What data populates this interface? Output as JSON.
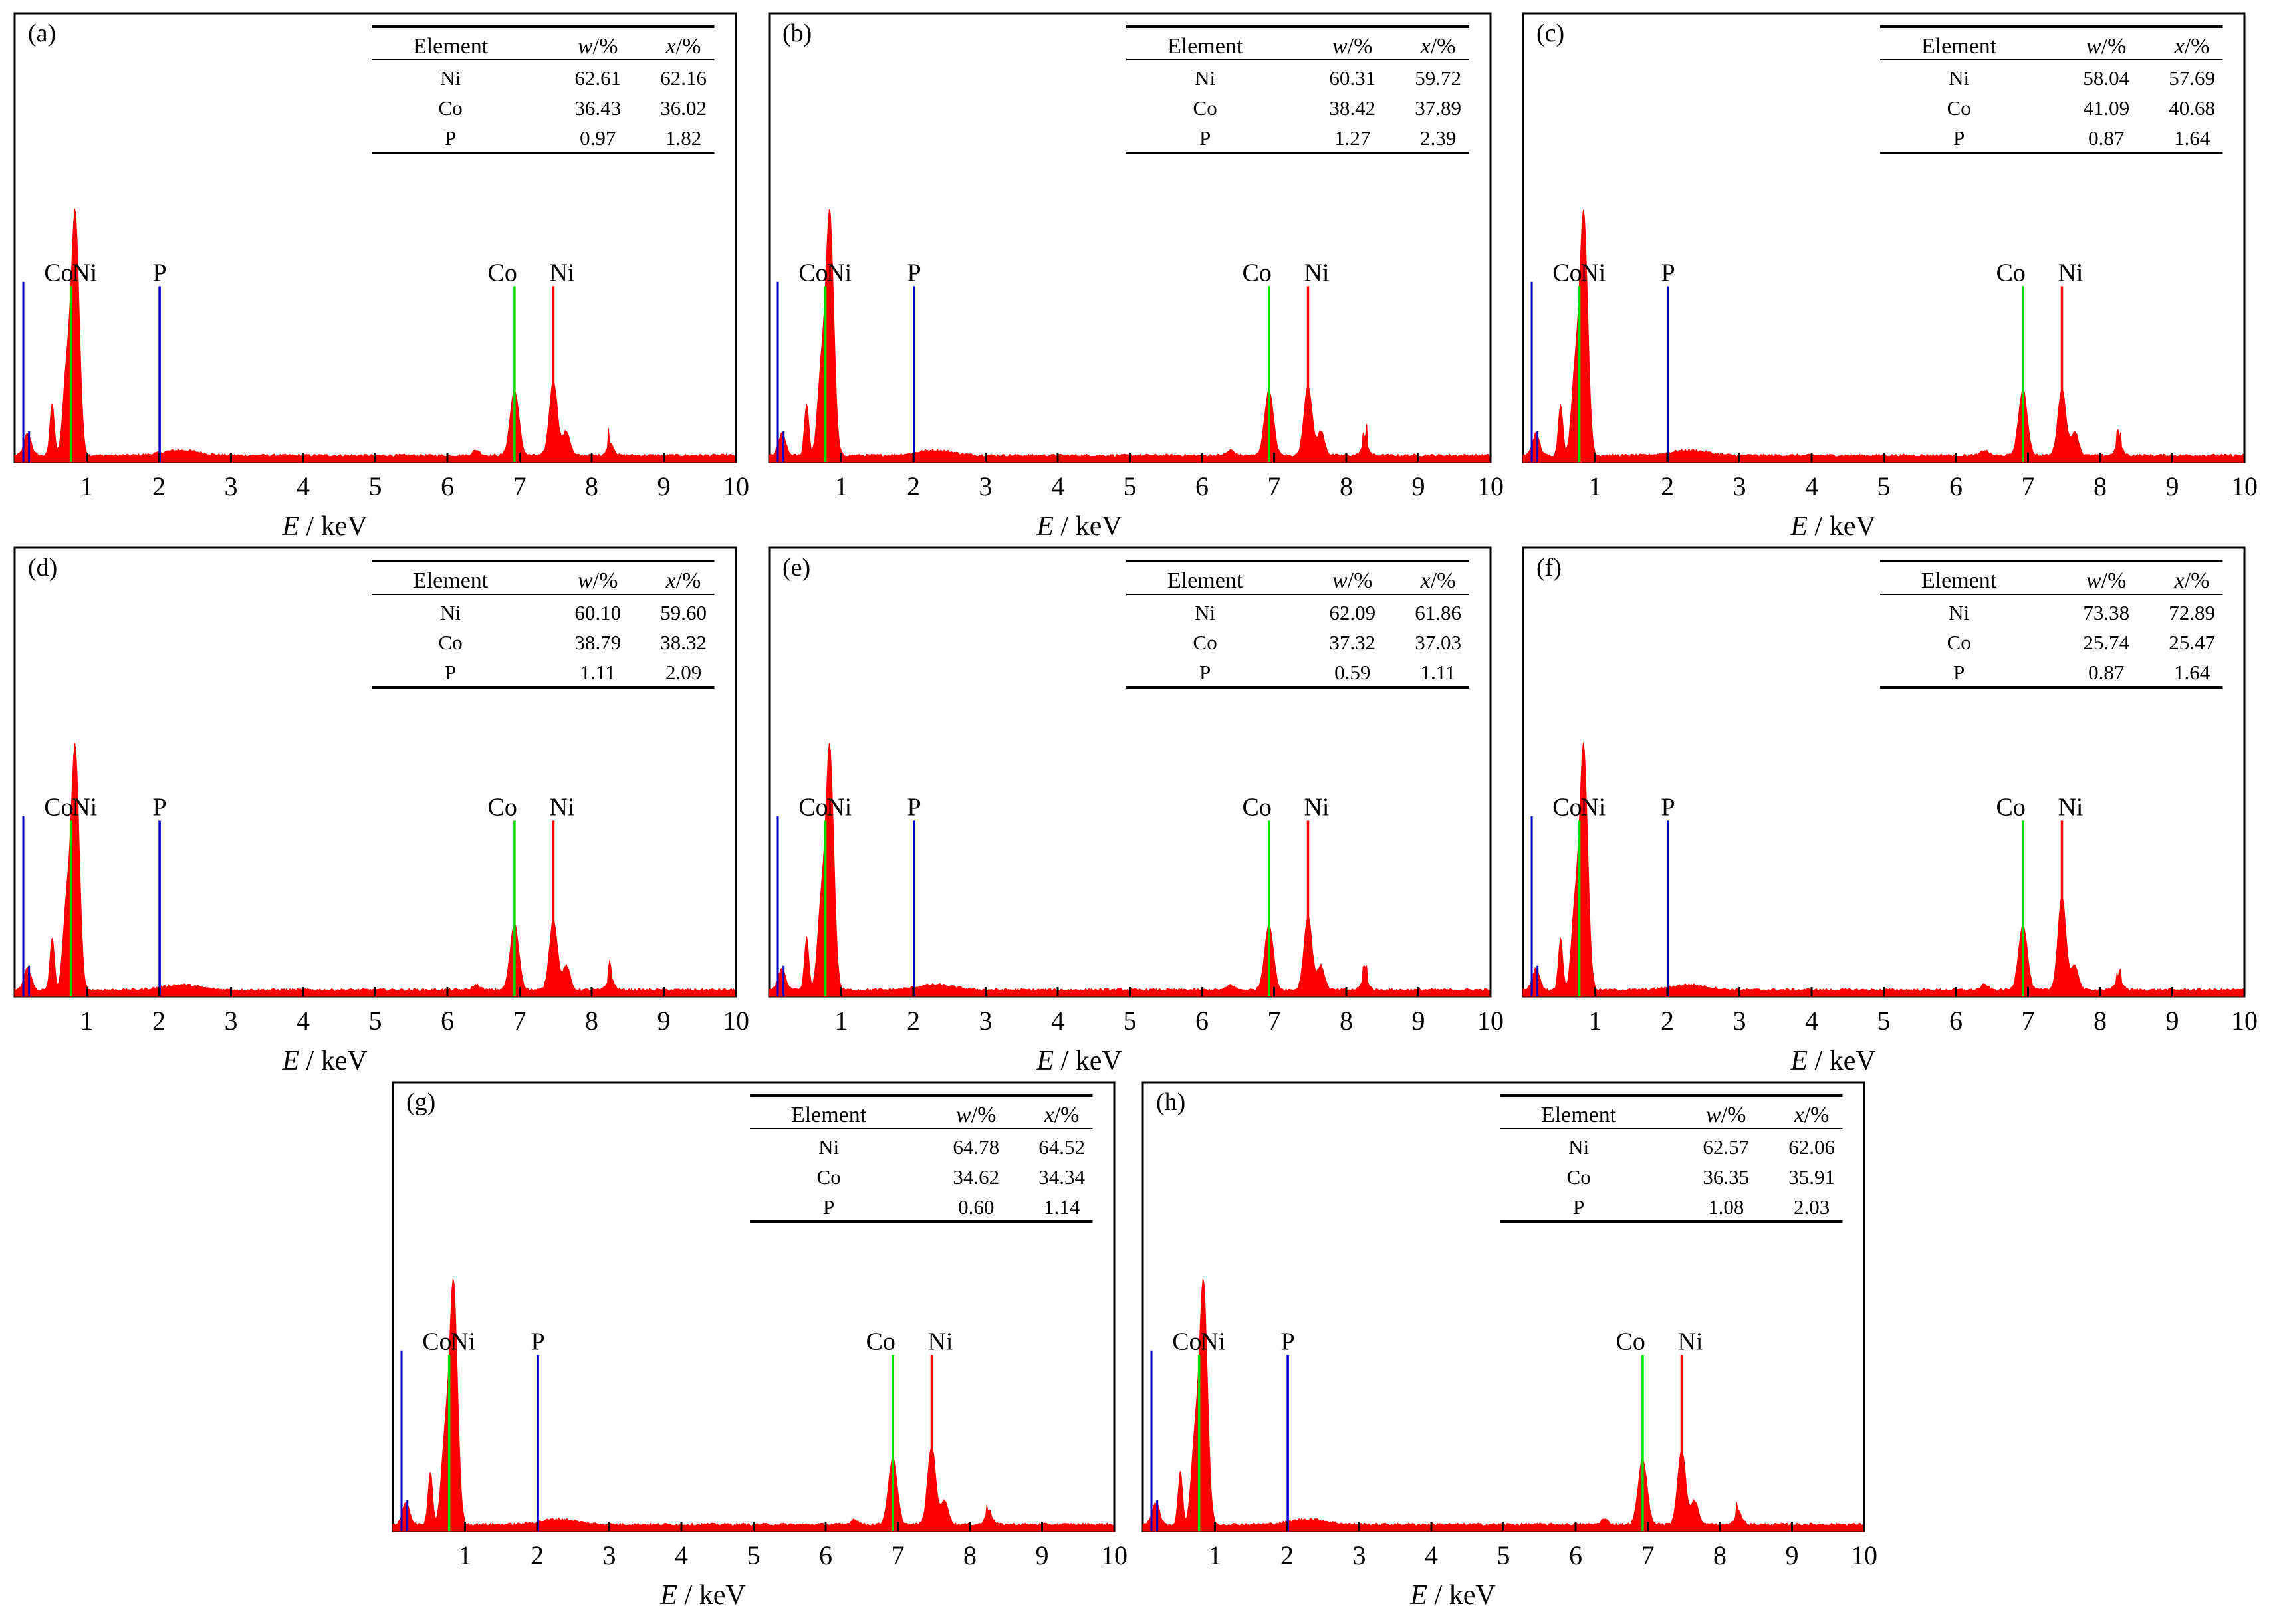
{
  "axis": {
    "xlabel_var": "E",
    "xlabel_unit": " / keV",
    "ticks": [
      "1",
      "2",
      "3",
      "4",
      "5",
      "6",
      "7",
      "8",
      "9",
      "10"
    ],
    "xlim": [
      0,
      10
    ]
  },
  "table_headers": {
    "element": "Element",
    "w_var": "w",
    "w_unit": "/%",
    "x_var": "x",
    "x_unit": "/%"
  },
  "colors": {
    "spectrum": "#ff0000",
    "ni_line": "#ff0000",
    "co_line": "#00dd00",
    "p_line": "#0000cc",
    "axes": "#000000"
  },
  "chart_data": [
    {
      "type": "area",
      "panel": "(a)",
      "xlabel": "E / keV",
      "xlim": [
        0,
        10
      ],
      "peak_markers": [
        {
          "label": "Co",
          "energy": 0.78
        },
        {
          "label": "Ni",
          "energy": 0.85
        },
        {
          "label": "P",
          "energy": 2.01
        },
        {
          "label": "Co",
          "energy": 6.93
        },
        {
          "label": "Ni",
          "energy": 7.47
        }
      ],
      "composition": [
        {
          "element": "Ni",
          "w": "62.61",
          "x": "62.16"
        },
        {
          "element": "Co",
          "w": "36.43",
          "x": "36.02"
        },
        {
          "element": "P",
          "w": "0.97",
          "x": "1.82"
        }
      ]
    },
    {
      "type": "area",
      "panel": "(b)",
      "xlabel": "E / keV",
      "xlim": [
        0,
        10
      ],
      "peak_markers": [
        {
          "label": "Co",
          "energy": 0.78
        },
        {
          "label": "Ni",
          "energy": 0.85
        },
        {
          "label": "P",
          "energy": 2.01
        },
        {
          "label": "Co",
          "energy": 6.93
        },
        {
          "label": "Ni",
          "energy": 7.47
        }
      ],
      "composition": [
        {
          "element": "Ni",
          "w": "60.31",
          "x": "59.72"
        },
        {
          "element": "Co",
          "w": "38.42",
          "x": "37.89"
        },
        {
          "element": "P",
          "w": "1.27",
          "x": "2.39"
        }
      ]
    },
    {
      "type": "area",
      "panel": "(c)",
      "xlabel": "E / keV",
      "xlim": [
        0,
        10
      ],
      "peak_markers": [
        {
          "label": "Co",
          "energy": 0.78
        },
        {
          "label": "Ni",
          "energy": 0.85
        },
        {
          "label": "P",
          "energy": 2.01
        },
        {
          "label": "Co",
          "energy": 6.93
        },
        {
          "label": "Ni",
          "energy": 7.47
        }
      ],
      "composition": [
        {
          "element": "Ni",
          "w": "58.04",
          "x": "57.69"
        },
        {
          "element": "Co",
          "w": "41.09",
          "x": "40.68"
        },
        {
          "element": "P",
          "w": "0.87",
          "x": "1.64"
        }
      ]
    },
    {
      "type": "area",
      "panel": "(d)",
      "xlabel": "E / keV",
      "xlim": [
        0,
        10
      ],
      "peak_markers": [
        {
          "label": "Co",
          "energy": 0.78
        },
        {
          "label": "Ni",
          "energy": 0.85
        },
        {
          "label": "P",
          "energy": 2.01
        },
        {
          "label": "Co",
          "energy": 6.93
        },
        {
          "label": "Ni",
          "energy": 7.47
        }
      ],
      "composition": [
        {
          "element": "Ni",
          "w": "60.10",
          "x": "59.60"
        },
        {
          "element": "Co",
          "w": "38.79",
          "x": "38.32"
        },
        {
          "element": "P",
          "w": "1.11",
          "x": "2.09"
        }
      ]
    },
    {
      "type": "area",
      "panel": "(e)",
      "xlabel": "E / keV",
      "xlim": [
        0,
        10
      ],
      "peak_markers": [
        {
          "label": "Co",
          "energy": 0.78
        },
        {
          "label": "Ni",
          "energy": 0.85
        },
        {
          "label": "P",
          "energy": 2.01
        },
        {
          "label": "Co",
          "energy": 6.93
        },
        {
          "label": "Ni",
          "energy": 7.47
        }
      ],
      "composition": [
        {
          "element": "Ni",
          "w": "62.09",
          "x": "61.86"
        },
        {
          "element": "Co",
          "w": "37.32",
          "x": "37.03"
        },
        {
          "element": "P",
          "w": "0.59",
          "x": "1.11"
        }
      ]
    },
    {
      "type": "area",
      "panel": "(f)",
      "xlabel": "E / keV",
      "xlim": [
        0,
        10
      ],
      "peak_markers": [
        {
          "label": "Co",
          "energy": 0.78
        },
        {
          "label": "Ni",
          "energy": 0.85
        },
        {
          "label": "P",
          "energy": 2.01
        },
        {
          "label": "Co",
          "energy": 6.93
        },
        {
          "label": "Ni",
          "energy": 7.47
        }
      ],
      "composition": [
        {
          "element": "Ni",
          "w": "73.38",
          "x": "72.89"
        },
        {
          "element": "Co",
          "w": "25.74",
          "x": "25.47"
        },
        {
          "element": "P",
          "w": "0.87",
          "x": "1.64"
        }
      ]
    },
    {
      "type": "area",
      "panel": "(g)",
      "xlabel": "E / keV",
      "xlim": [
        0,
        10
      ],
      "peak_markers": [
        {
          "label": "Co",
          "energy": 0.78
        },
        {
          "label": "Ni",
          "energy": 0.85
        },
        {
          "label": "P",
          "energy": 2.01
        },
        {
          "label": "Co",
          "energy": 6.93
        },
        {
          "label": "Ni",
          "energy": 7.47
        }
      ],
      "composition": [
        {
          "element": "Ni",
          "w": "64.78",
          "x": "64.52"
        },
        {
          "element": "Co",
          "w": "34.62",
          "x": "34.34"
        },
        {
          "element": "P",
          "w": "0.60",
          "x": "1.14"
        }
      ]
    },
    {
      "type": "area",
      "panel": "(h)",
      "xlabel": "E / keV",
      "xlim": [
        0,
        10
      ],
      "peak_markers": [
        {
          "label": "Co",
          "energy": 0.78
        },
        {
          "label": "Ni",
          "energy": 0.85
        },
        {
          "label": "P",
          "energy": 2.01
        },
        {
          "label": "Co",
          "energy": 6.93
        },
        {
          "label": "Ni",
          "energy": 7.47
        }
      ],
      "composition": [
        {
          "element": "Ni",
          "w": "62.57",
          "x": "62.06"
        },
        {
          "element": "Co",
          "w": "36.35",
          "x": "35.91"
        },
        {
          "element": "P",
          "w": "1.08",
          "x": "2.03"
        }
      ]
    }
  ]
}
